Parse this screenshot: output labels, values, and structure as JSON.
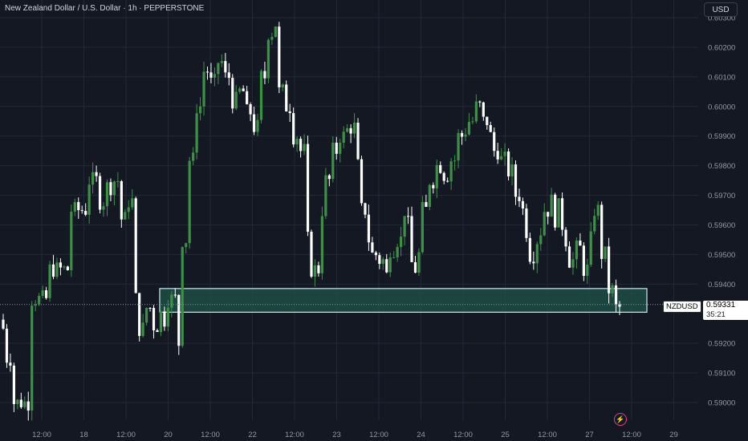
{
  "header": {
    "title": "New Zealand Dollar / U.S. Dollar · 1h · PEPPERSTONE",
    "currency_button": "USD"
  },
  "price_marker": {
    "symbol": "NZDUSD",
    "price": "0.59331",
    "countdown": "35:21"
  },
  "icons": {
    "bottom": "lightning-bolt-icon"
  },
  "colors": {
    "background": "#141823",
    "up": "#3f8f48",
    "down": "#ffffff",
    "zone_fill": "#1f4d45",
    "zone_border": "#cfe6f2",
    "grid": "#232838",
    "axis_text": "#9598a1"
  },
  "chart_data": {
    "type": "candlestick",
    "symbol": "NZDUSD",
    "timeframe": "1h",
    "y_axis": {
      "ticks": [
        "0.60300",
        "0.60200",
        "0.60100",
        "0.60000",
        "0.59900",
        "0.59800",
        "0.59700",
        "0.59600",
        "0.59500",
        "0.59400",
        "0.59200",
        "0.59100",
        "0.59000"
      ],
      "range": [
        0.5895,
        0.6031
      ]
    },
    "x_axis": {
      "labels": [
        "12:00",
        "18",
        "12:00",
        "20",
        "12:00",
        "22",
        "12:00",
        "23",
        "12:00",
        "24",
        "12:00",
        "25",
        "12:00",
        "27",
        "12:00",
        "29"
      ]
    },
    "zone": {
      "top": 0.59385,
      "bottom": 0.59305
    },
    "last_price": 0.59331,
    "path": [
      [
        0.5925,
        -1
      ],
      [
        0.5915,
        2
      ],
      [
        0.59,
        5
      ],
      [
        0.5935,
        5
      ],
      [
        0.5945,
        6
      ],
      [
        0.5965,
        5
      ],
      [
        0.5975,
        3
      ],
      [
        0.5968,
        2
      ],
      [
        0.5973,
        2
      ],
      [
        0.5975,
        2
      ],
      [
        0.5962,
        2
      ],
      [
        0.5968,
        2
      ],
      [
        0.5935,
        1
      ],
      [
        0.5925,
        2
      ],
      [
        0.5932,
        2
      ],
      [
        0.5926,
        2
      ],
      [
        0.593,
        1
      ],
      [
        0.5928,
        1
      ],
      [
        0.5935,
        1
      ],
      [
        0.5935,
        2
      ],
      [
        0.592,
        1
      ],
      [
        0.5955,
        2
      ],
      [
        0.5982,
        2
      ],
      [
        0.6,
        2
      ],
      [
        0.6012,
        2
      ],
      [
        0.6008,
        2
      ],
      [
        0.6015,
        2
      ],
      [
        0.601,
        2
      ],
      [
        0.6002,
        2
      ],
      [
        0.6005,
        2
      ],
      [
        0.5998,
        2
      ],
      [
        0.5993,
        2
      ],
      [
        0.601,
        2
      ],
      [
        0.6025,
        2
      ],
      [
        0.6028,
        1
      ],
      [
        0.6005,
        2
      ],
      [
        0.6,
        2
      ],
      [
        0.599,
        2
      ],
      [
        0.5985,
        2
      ],
      [
        0.5955,
        1
      ],
      [
        0.5945,
        3
      ],
      [
        0.5965,
        1
      ],
      [
        0.5975,
        2
      ],
      [
        0.5985,
        2
      ],
      [
        0.599,
        2
      ],
      [
        0.5992,
        1
      ],
      [
        0.5993,
        2
      ],
      [
        0.598,
        1
      ],
      [
        0.5965,
        2
      ],
      [
        0.5955,
        1
      ],
      [
        0.595,
        2
      ],
      [
        0.5948,
        2
      ],
      [
        0.5943,
        1
      ],
      [
        0.5952,
        2
      ],
      [
        0.5955,
        2
      ],
      [
        0.5965,
        1
      ],
      [
        0.596,
        1
      ],
      [
        0.5947,
        1
      ],
      [
        0.5945,
        1
      ],
      [
        0.595,
        1
      ],
      [
        0.5965,
        2
      ],
      [
        0.5975,
        2
      ],
      [
        0.598,
        2
      ],
      [
        0.5977,
        2
      ],
      [
        0.5982,
        2
      ],
      [
        0.599,
        2
      ],
      [
        0.5992,
        1
      ],
      [
        0.5995,
        2
      ],
      [
        0.6,
        2
      ],
      [
        0.5995,
        2
      ],
      [
        0.599,
        1
      ],
      [
        0.5985,
        2
      ],
      [
        0.5982,
        2
      ],
      [
        0.5978,
        2
      ],
      [
        0.597,
        2
      ],
      [
        0.5965,
        1
      ],
      [
        0.5958,
        1
      ],
      [
        0.595,
        2
      ],
      [
        0.5955,
        1
      ],
      [
        0.5958,
        1
      ],
      [
        0.5965,
        2
      ],
      [
        0.5968,
        1
      ],
      [
        0.5962,
        1
      ],
      [
        0.5966,
        1
      ],
      [
        0.596,
        1
      ],
      [
        0.5955,
        1
      ],
      [
        0.5948,
        2
      ],
      [
        0.5952,
        2
      ],
      [
        0.5945,
        2
      ],
      [
        0.5955,
        1
      ],
      [
        0.5965,
        2
      ],
      [
        0.595,
        2
      ],
      [
        0.5938,
        2
      ],
      [
        0.5932,
        2
      ]
    ]
  }
}
